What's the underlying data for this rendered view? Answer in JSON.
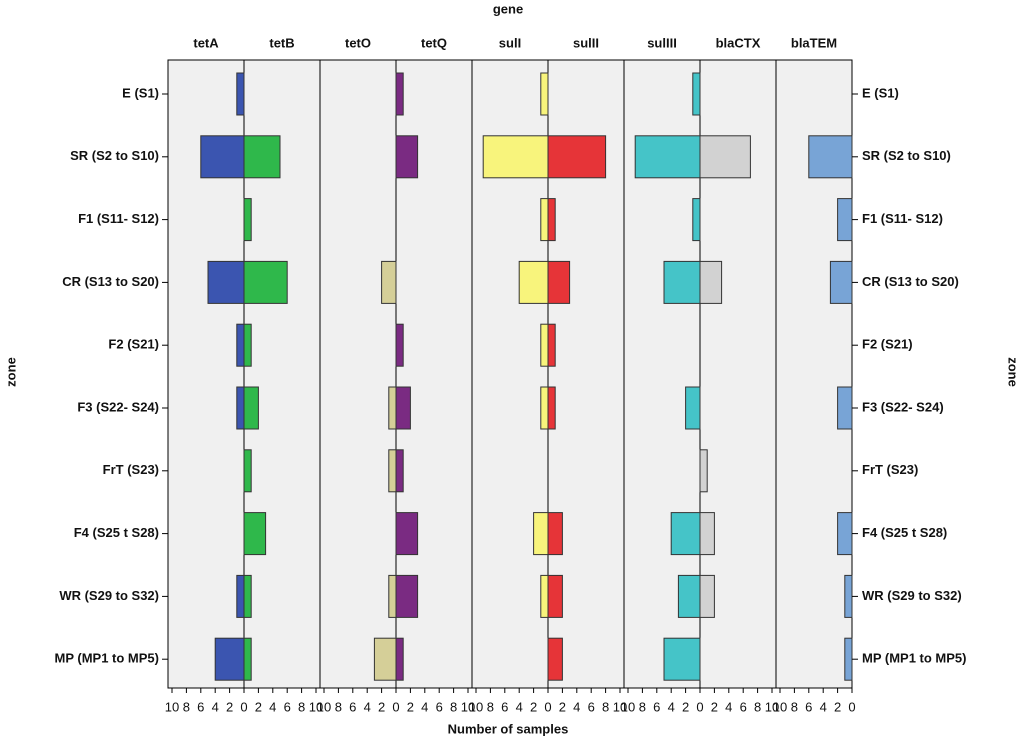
{
  "chart_data": {
    "type": "bar",
    "title": "gene",
    "y_label": "zone",
    "x_label": "Number of samples",
    "categories": [
      "E (S1)",
      "SR (S2 to S10)",
      "F1 (S11- S12)",
      "CR (S13 to S20)",
      "F2 (S21)",
      "F3 (S22- S24)",
      "FrT (S23)",
      "F4 (S25 t S28)",
      "WR (S29 to S32)",
      "MP (MP1 to MP5)"
    ],
    "xlim": [
      0,
      10
    ],
    "xticks": [
      0,
      2,
      4,
      6,
      8,
      10
    ],
    "series": [
      {
        "name": "tetA",
        "side": "left",
        "color": "#3b55b0",
        "values": [
          1,
          6,
          0,
          5,
          1,
          1,
          0,
          0,
          1,
          4
        ]
      },
      {
        "name": "tetB",
        "side": "right",
        "color": "#2fb84b",
        "values": [
          0,
          5,
          1,
          6,
          1,
          2,
          1,
          3,
          1,
          1
        ]
      },
      {
        "name": "tetO",
        "side": "left",
        "color": "#d5cf98",
        "values": [
          0,
          0,
          0,
          2,
          0,
          1,
          1,
          0,
          1,
          3
        ]
      },
      {
        "name": "tetQ",
        "side": "right",
        "color": "#7a2b82",
        "values": [
          1,
          3,
          0,
          0,
          1,
          2,
          1,
          3,
          3,
          1
        ]
      },
      {
        "name": "sulI",
        "side": "left",
        "color": "#f8f47c",
        "values": [
          1,
          9,
          1,
          4,
          1,
          1,
          0,
          2,
          1,
          0
        ]
      },
      {
        "name": "sulII",
        "side": "right",
        "color": "#e63438",
        "values": [
          0,
          8,
          1,
          3,
          1,
          1,
          0,
          2,
          2,
          2
        ]
      },
      {
        "name": "sulIII",
        "side": "left",
        "color": "#45c4c8",
        "values": [
          1,
          9,
          1,
          5,
          0,
          2,
          0,
          4,
          3,
          5
        ]
      },
      {
        "name": "blaCTX",
        "side": "right",
        "color": "#d2d2d2",
        "values": [
          0,
          7,
          0,
          3,
          0,
          0,
          1,
          2,
          2,
          0
        ]
      },
      {
        "name": "blaTEM",
        "side": "left",
        "color": "#78a4d6",
        "values": [
          0,
          6,
          2,
          3,
          0,
          2,
          0,
          2,
          1,
          1
        ]
      }
    ]
  }
}
